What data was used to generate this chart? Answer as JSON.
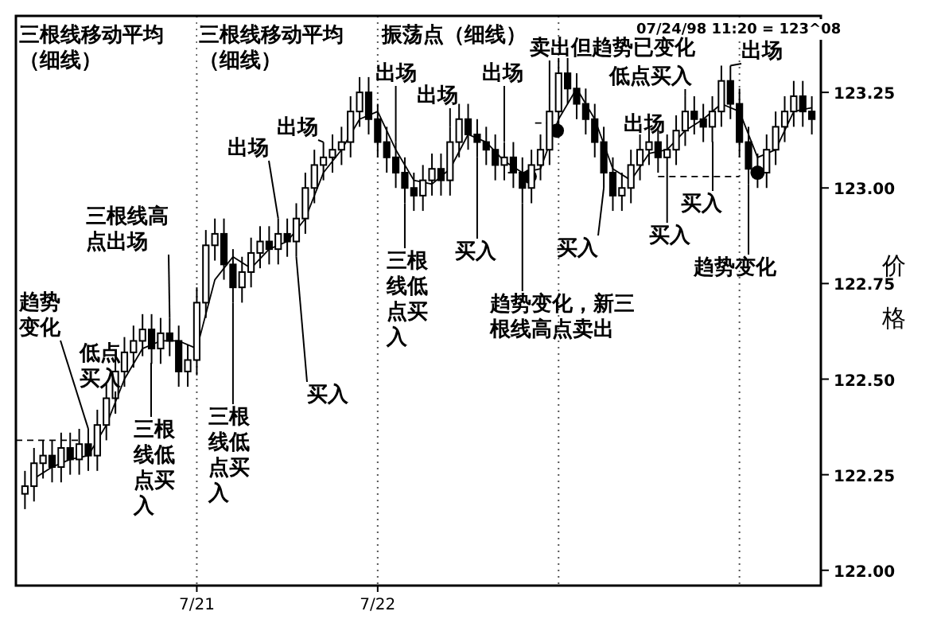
{
  "chart_data": {
    "type": "candlestick",
    "ylabel": "价格",
    "xlim": [
      "--07-20T00:00",
      "--07-24T10:48"
    ],
    "xticks": [
      {
        "value": "--07-21",
        "label": "7/21"
      },
      {
        "value": "--07-22",
        "label": "7/22"
      }
    ],
    "ylim": [
      121.96,
      123.45
    ],
    "yticks": [
      {
        "value": 122,
        "label": "122.00"
      },
      {
        "value": 122.25,
        "label": "122.25"
      },
      {
        "value": 122.5,
        "label": "122.50"
      },
      {
        "value": 122.75,
        "label": "122.75"
      },
      {
        "value": 123,
        "label": "123.00"
      },
      {
        "value": 123.25,
        "label": "123.25"
      }
    ],
    "ref_lines": [
      {
        "axis": "x",
        "value": "--07-21",
        "line_style": "dotted"
      },
      {
        "axis": "x",
        "value": "--07-22",
        "line_style": "dotted"
      },
      {
        "axis": "x",
        "value": "--07-23",
        "line_style": "dotted"
      },
      {
        "axis": "x",
        "value": "--07-24",
        "line_style": "dotted"
      }
    ],
    "series": [
      {
        "color": "#000000",
        "x": [
          "--07-20T01:12",
          "--07-20T02:24",
          "--07-20T03:36",
          "--07-20T04:48",
          "--07-20T06:00",
          "--07-20T07:12",
          "--07-20T08:24",
          "--07-20T09:36",
          "--07-20T10:48",
          "--07-20T12:00",
          "--07-20T13:12",
          "--07-20T14:24",
          "--07-20T15:36",
          "--07-20T16:48",
          "--07-20T18:00",
          "--07-20T19:12",
          "--07-20T20:24",
          "--07-20T21:36",
          "--07-20T22:48",
          "--07-21T00:00",
          "--07-21T01:12",
          "--07-21T02:24",
          "--07-21T03:36",
          "--07-21T04:48",
          "--07-21T06:00",
          "--07-21T07:12",
          "--07-21T08:24",
          "--07-21T09:36",
          "--07-21T10:48",
          "--07-21T12:00",
          "--07-21T13:12",
          "--07-21T14:24",
          "--07-21T15:36",
          "--07-21T16:48",
          "--07-21T18:00",
          "--07-21T19:12",
          "--07-21T20:24",
          "--07-21T21:36",
          "--07-21T22:48",
          "--07-22T00:00",
          "--07-22T01:12",
          "--07-22T02:24",
          "--07-22T03:36",
          "--07-22T04:48",
          "--07-22T06:00",
          "--07-22T07:12",
          "--07-22T08:24",
          "--07-22T09:36",
          "--07-22T10:48",
          "--07-22T12:00",
          "--07-22T13:12",
          "--07-22T14:24",
          "--07-22T15:36",
          "--07-22T16:48",
          "--07-22T18:00",
          "--07-22T19:12",
          "--07-22T20:24",
          "--07-22T21:36",
          "--07-22T22:48",
          "--07-23T00:00",
          "--07-23T01:12",
          "--07-23T02:24",
          "--07-23T03:36",
          "--07-23T04:48",
          "--07-23T06:00",
          "--07-23T07:12",
          "--07-23T08:24",
          "--07-23T09:36",
          "--07-23T10:48",
          "--07-23T12:00",
          "--07-23T13:12",
          "--07-23T14:24",
          "--07-23T15:36",
          "--07-23T16:48",
          "--07-23T18:00",
          "--07-23T19:12",
          "--07-23T20:24",
          "--07-23T21:36",
          "--07-23T22:48",
          "--07-24T00:00",
          "--07-24T01:12",
          "--07-24T02:24",
          "--07-24T03:36",
          "--07-24T04:48",
          "--07-24T06:00",
          "--07-24T07:12",
          "--07-24T08:24",
          "--07-24T09:36"
        ],
        "ohlc": [
          [
            122.2,
            122.26,
            122.16,
            122.22
          ],
          [
            122.22,
            122.32,
            122.18,
            122.28
          ],
          [
            122.28,
            122.34,
            122.24,
            122.3
          ],
          [
            122.3,
            122.34,
            122.23,
            122.27
          ],
          [
            122.27,
            122.36,
            122.23,
            122.32
          ],
          [
            122.32,
            122.36,
            122.25,
            122.29
          ],
          [
            122.29,
            122.37,
            122.25,
            122.33
          ],
          [
            122.33,
            122.37,
            122.26,
            122.3
          ],
          [
            122.3,
            122.42,
            122.26,
            122.38
          ],
          [
            122.38,
            122.49,
            122.34,
            122.45
          ],
          [
            122.45,
            122.56,
            122.41,
            122.52
          ],
          [
            122.52,
            122.61,
            122.48,
            122.57
          ],
          [
            122.57,
            122.64,
            122.53,
            122.6
          ],
          [
            122.6,
            122.67,
            122.56,
            122.63
          ],
          [
            122.63,
            122.67,
            122.54,
            122.58
          ],
          [
            122.58,
            122.66,
            122.54,
            122.62
          ],
          [
            122.62,
            122.66,
            122.56,
            122.6
          ],
          [
            122.6,
            122.64,
            122.48,
            122.52
          ],
          [
            122.52,
            122.59,
            122.48,
            122.55
          ],
          [
            122.55,
            122.74,
            122.51,
            122.7
          ],
          [
            122.7,
            122.89,
            122.66,
            122.85
          ],
          [
            122.85,
            122.92,
            122.81,
            122.88
          ],
          [
            122.88,
            122.92,
            122.76,
            122.8
          ],
          [
            122.8,
            122.84,
            122.7,
            122.74
          ],
          [
            122.74,
            122.82,
            122.7,
            122.78
          ],
          [
            122.78,
            122.87,
            122.74,
            122.83
          ],
          [
            122.83,
            122.9,
            122.79,
            122.86
          ],
          [
            122.86,
            122.9,
            122.8,
            122.84
          ],
          [
            122.84,
            122.92,
            122.8,
            122.88
          ],
          [
            122.88,
            122.92,
            122.82,
            122.86
          ],
          [
            122.86,
            122.96,
            122.82,
            122.92
          ],
          [
            122.92,
            123.04,
            122.88,
            123.0
          ],
          [
            123.0,
            123.1,
            122.96,
            123.06
          ],
          [
            123.06,
            123.12,
            123.02,
            123.08
          ],
          [
            123.08,
            123.14,
            123.04,
            123.1
          ],
          [
            123.1,
            123.16,
            123.06,
            123.12
          ],
          [
            123.12,
            123.24,
            123.08,
            123.2
          ],
          [
            123.2,
            123.29,
            123.16,
            123.25
          ],
          [
            123.25,
            123.29,
            123.14,
            123.18
          ],
          [
            123.18,
            123.22,
            123.08,
            123.12
          ],
          [
            123.12,
            123.16,
            123.04,
            123.08
          ],
          [
            123.08,
            123.12,
            123.0,
            123.04
          ],
          [
            123.04,
            123.08,
            122.96,
            123.0
          ],
          [
            123.0,
            123.04,
            122.94,
            122.98
          ],
          [
            122.98,
            123.06,
            122.94,
            123.02
          ],
          [
            123.02,
            123.09,
            122.98,
            123.05
          ],
          [
            123.05,
            123.09,
            122.98,
            123.02
          ],
          [
            123.02,
            123.16,
            122.98,
            123.12
          ],
          [
            123.12,
            123.22,
            123.08,
            123.18
          ],
          [
            123.18,
            123.22,
            123.1,
            123.14
          ],
          [
            123.14,
            123.18,
            123.08,
            123.12
          ],
          [
            123.12,
            123.16,
            123.06,
            123.1
          ],
          [
            123.1,
            123.14,
            123.02,
            123.06
          ],
          [
            123.06,
            123.12,
            123.02,
            123.08
          ],
          [
            123.08,
            123.12,
            123.0,
            123.04
          ],
          [
            123.04,
            123.08,
            122.96,
            123.0
          ],
          [
            123.0,
            123.1,
            122.96,
            123.06
          ],
          [
            123.06,
            123.14,
            123.02,
            123.1
          ],
          [
            123.1,
            123.24,
            123.06,
            123.2
          ],
          [
            123.2,
            123.34,
            123.16,
            123.3
          ],
          [
            123.3,
            123.34,
            123.22,
            123.26
          ],
          [
            123.26,
            123.3,
            123.18,
            123.22
          ],
          [
            123.22,
            123.26,
            123.14,
            123.18
          ],
          [
            123.18,
            123.22,
            123.08,
            123.12
          ],
          [
            123.12,
            123.16,
            123.0,
            123.04
          ],
          [
            123.04,
            123.08,
            122.94,
            122.98
          ],
          [
            122.98,
            123.04,
            122.94,
            123.0
          ],
          [
            123.0,
            123.1,
            122.96,
            123.06
          ],
          [
            123.06,
            123.14,
            123.02,
            123.1
          ],
          [
            123.1,
            123.16,
            123.06,
            123.12
          ],
          [
            123.12,
            123.16,
            123.04,
            123.08
          ],
          [
            123.08,
            123.14,
            123.04,
            123.1
          ],
          [
            123.1,
            123.19,
            123.06,
            123.15
          ],
          [
            123.15,
            123.24,
            123.11,
            123.2
          ],
          [
            123.2,
            123.24,
            123.14,
            123.18
          ],
          [
            123.18,
            123.22,
            123.12,
            123.16
          ],
          [
            123.16,
            123.24,
            123.12,
            123.2
          ],
          [
            123.2,
            123.32,
            123.16,
            123.28
          ],
          [
            123.28,
            123.32,
            123.18,
            123.22
          ],
          [
            123.22,
            123.26,
            123.08,
            123.12
          ],
          [
            123.12,
            123.16,
            123.01,
            123.05
          ],
          [
            123.05,
            123.09,
            123.0,
            123.04
          ],
          [
            123.04,
            123.14,
            123.0,
            123.1
          ],
          [
            123.1,
            123.2,
            123.06,
            123.16
          ],
          [
            123.16,
            123.24,
            123.12,
            123.2
          ],
          [
            123.2,
            123.28,
            123.16,
            123.24
          ],
          [
            123.24,
            123.28,
            123.16,
            123.2
          ],
          [
            123.2,
            123.24,
            123.14,
            123.18
          ]
        ]
      },
      {
        "type": "line",
        "color": "#000000",
        "line_style": "solid",
        "x": [
          "--07-20T02:24",
          "--07-20T04:48",
          "--07-20T07:12",
          "--07-20T09:36",
          "--07-20T12:00",
          "--07-20T14:24",
          "--07-20T16:48",
          "--07-20T19:12",
          "--07-20T21:36",
          "--07-21T00:00",
          "--07-21T02:24",
          "--07-21T04:48",
          "--07-21T07:12",
          "--07-21T09:36",
          "--07-21T12:00",
          "--07-21T14:24",
          "--07-21T16:48",
          "--07-21T19:12",
          "--07-21T21:36",
          "--07-22T00:00",
          "--07-22T02:24",
          "--07-22T04:48",
          "--07-22T07:12",
          "--07-22T09:36",
          "--07-22T12:00",
          "--07-22T14:24",
          "--07-22T16:48",
          "--07-22T19:12",
          "--07-22T21:36",
          "--07-23T00:00",
          "--07-23T02:24",
          "--07-23T04:48",
          "--07-23T07:12",
          "--07-23T09:36",
          "--07-23T12:00",
          "--07-23T14:24",
          "--07-23T16:48",
          "--07-23T19:12",
          "--07-23T21:36",
          "--07-24T00:00",
          "--07-24T02:24",
          "--07-24T04:48",
          "--07-24T07:12",
          "--07-24T09:36"
        ],
        "values": [
          122.24,
          122.27,
          122.29,
          122.3,
          122.38,
          122.5,
          122.58,
          122.6,
          122.6,
          122.58,
          122.76,
          122.82,
          122.79,
          122.84,
          122.86,
          122.92,
          123.04,
          123.1,
          123.18,
          123.2,
          123.1,
          123.02,
          123.01,
          123.05,
          123.14,
          123.12,
          123.07,
          123.04,
          123.05,
          123.18,
          123.26,
          123.18,
          123.05,
          123.02,
          123.09,
          123.1,
          123.15,
          123.18,
          123.22,
          123.2,
          123.08,
          123.1,
          123.2,
          123.21
        ]
      },
      {
        "type": "line",
        "color": "#000000",
        "line_style": "dashed",
        "x": [
          "--07-20T00:00",
          "--07-20T08:24"
        ],
        "values": [
          122.34,
          122.34
        ]
      },
      {
        "type": "line",
        "color": "#000000",
        "line_style": "dashed",
        "x": [
          "--07-22T20:53",
          "--07-22T23:17"
        ],
        "values": [
          123.17,
          123.17
        ]
      },
      {
        "type": "line",
        "color": "#000000",
        "line_style": "dashed",
        "x": [
          "--07-22T17:17",
          "--07-22T20:24"
        ],
        "values": [
          123.04,
          123.04
        ]
      },
      {
        "type": "line",
        "color": "#000000",
        "line_style": "dashed",
        "x": [
          "--07-23T13:12",
          "--07-24T00:00"
        ],
        "values": [
          123.03,
          123.03
        ]
      },
      {
        "type": "scatter",
        "color": "#000000",
        "marker": "circle",
        "x": [
          "--07-22T23:46",
          "--07-22T20:10",
          "--07-24T02:24"
        ],
        "values": [
          123.15,
          123.03,
          123.04
        ]
      }
    ],
    "annotations": [
      "三根线移动平均（细线）",
      "三根线移动平均（细线）",
      "振荡点（细线）",
      "07/24/98 11:20 = 123^08",
      {
        "text": "趋势变化",
        "x": "--07-20T09:36",
        "y": 122.37
      },
      {
        "text": "低点买入",
        "x": "--07-20T13:12",
        "y": 122.41
      },
      "三根线低点买入",
      {
        "text": "三根线高点出场",
        "x": "--07-20T20:24",
        "y": 122.66
      },
      {
        "text": "三根线低点买入",
        "x": "--07-21T04:48",
        "y": 122.7
      },
      {
        "text": "买入",
        "x": "--07-21T13:12",
        "y": 122.82
      },
      {
        "text": "出场",
        "x": "--07-21T10:48",
        "y": 122.92
      },
      {
        "text": "出场",
        "x": "--07-21T16:48",
        "y": 123.12
      },
      {
        "text": "出场",
        "x": "--07-22T02:24",
        "y": 123.12
      },
      {
        "text": "出场",
        "x": "--07-22T09:36",
        "y": 123.16
      },
      {
        "text": "三根线低点买入",
        "x": "--07-22T03:36",
        "y": 122.96
      },
      {
        "text": "买入",
        "x": "--07-22T13:12",
        "y": 123.08
      },
      "出场",
      {
        "text": "趋势变化，新三根线高点卖出",
        "x": "--07-22T19:12",
        "y": 122.96
      },
      {
        "text": "卖出但趋势已变化",
        "x": "--07-22T22:48",
        "y": 123.24
      },
      {
        "text": "买入",
        "x": "--07-23T06:00",
        "y": 123.0
      },
      {
        "text": "低点买入",
        "x": "--07-23T16:48",
        "y": 123.24
      },
      {
        "text": "出场",
        "x": "--07-23T12:00",
        "y": 123.16
      },
      {
        "text": "买入",
        "x": "--07-23T14:24",
        "y": 123.04
      },
      "买入",
      {
        "text": "趋势变化",
        "x": "--07-24T01:12",
        "y": 123.01
      },
      {
        "text": "出场",
        "x": "--07-23T22:48",
        "y": 123.32
      }
    ]
  }
}
